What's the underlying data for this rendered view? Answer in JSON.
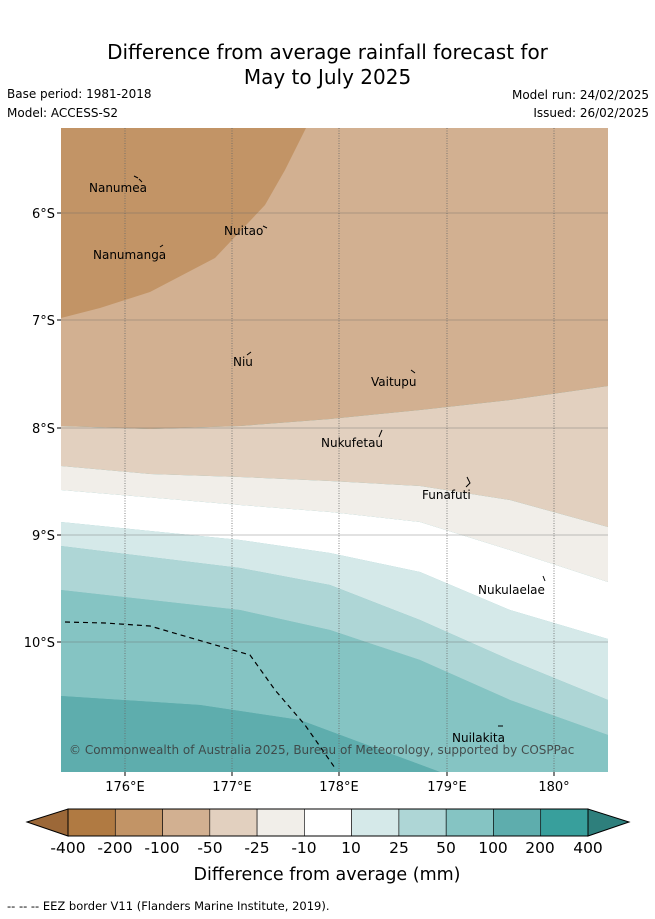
{
  "header": {
    "title_line1": "Difference from average rainfall forecast for",
    "title_line2": "May to July 2025",
    "base_period": "Base period: 1981-2018",
    "model": "Model: ACCESS-S2",
    "model_run": "Model run: 24/02/2025",
    "issued": "Issued: 26/02/2025"
  },
  "map": {
    "lon_ticks": [
      "176°E",
      "177°E",
      "178°E",
      "179°E",
      "180°"
    ],
    "lat_ticks": [
      "6°S",
      "7°S",
      "8°S",
      "9°S",
      "10°S"
    ],
    "copyright": "© Commonwealth of Australia 2025, Bureau of Meteorology, supported by COSPPac",
    "places": [
      "Nanumea",
      "Nuitao",
      "Nanumanga",
      "Niu",
      "Vaitupu",
      "Nukufetau",
      "Funafuti",
      "Nukulaelae",
      "Nuilakita"
    ]
  },
  "legend": {
    "title": "Difference from average (mm)",
    "tick_labels": [
      "-400",
      "-200",
      "-100",
      "-50",
      "-25",
      "-10",
      "10",
      "25",
      "50",
      "100",
      "200",
      "400"
    ],
    "colors": [
      "#b07a42",
      "#c29466",
      "#d2b091",
      "#e2d0bf",
      "#f1eee9",
      "#ffffff",
      "#d5e9e9",
      "#aed6d6",
      "#85c4c3",
      "#5ead ad",
      "#389f9c"
    ],
    "extend_low_color": "#9c6838",
    "extend_high_color": "#2e7f7c"
  },
  "footnote": "-- -- -- EEZ border V11 (Flanders Marine Institute, 2019)."
}
